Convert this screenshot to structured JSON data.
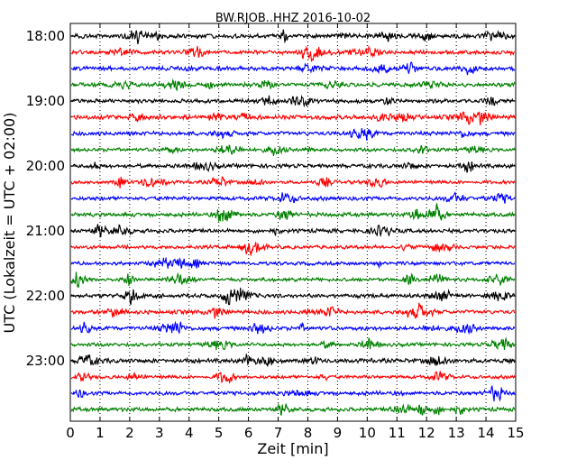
{
  "chart_data": {
    "type": "line",
    "title": "BW.RJOB..HHZ 2016-10-02",
    "xlabel": "Zeit  [min]",
    "ylabel": "UTC (Lokalzeit = UTC + 02:00)",
    "xlim": [
      0,
      15
    ],
    "x_ticks": [
      0,
      1,
      2,
      3,
      4,
      5,
      6,
      7,
      8,
      9,
      10,
      11,
      12,
      13,
      14,
      15
    ],
    "x_tick_labels": [
      "0",
      "1",
      "2",
      "3",
      "4",
      "5",
      "6",
      "7",
      "8",
      "9",
      "10",
      "11",
      "12",
      "13",
      "14",
      "15"
    ],
    "y_tick_labels": [
      "18:00",
      "19:00",
      "20:00",
      "21:00",
      "22:00",
      "23:00"
    ],
    "y_tick_rows": [
      0,
      4,
      8,
      12,
      16,
      20
    ],
    "grid": "vertical-dotted",
    "row_interval_min": 15,
    "trace_colors": [
      "#000000",
      "#ff0000",
      "#0000ff",
      "#008000"
    ],
    "traces": [
      {
        "start": "18:00",
        "amp": 1.0
      },
      {
        "start": "18:15",
        "amp": 0.9
      },
      {
        "start": "18:30",
        "amp": 1.0
      },
      {
        "start": "18:45",
        "amp": 0.9
      },
      {
        "start": "19:00",
        "amp": 0.9
      },
      {
        "start": "19:15",
        "amp": 1.0
      },
      {
        "start": "19:30",
        "amp": 0.9
      },
      {
        "start": "19:45",
        "amp": 0.8
      },
      {
        "start": "20:00",
        "amp": 0.9
      },
      {
        "start": "20:15",
        "amp": 0.8
      },
      {
        "start": "20:30",
        "amp": 0.9
      },
      {
        "start": "20:45",
        "amp": 0.9
      },
      {
        "start": "21:00",
        "amp": 0.9
      },
      {
        "start": "21:15",
        "amp": 0.8
      },
      {
        "start": "21:30",
        "amp": 0.8
      },
      {
        "start": "21:45",
        "amp": 0.8
      },
      {
        "start": "22:00",
        "amp": 0.9
      },
      {
        "start": "22:15",
        "amp": 0.9
      },
      {
        "start": "22:30",
        "amp": 0.9
      },
      {
        "start": "22:45",
        "amp": 0.8
      },
      {
        "start": "23:00",
        "amp": 1.0
      },
      {
        "start": "23:15",
        "amp": 0.8
      },
      {
        "start": "23:30",
        "amp": 0.9
      },
      {
        "start": "23:45",
        "amp": 0.9
      }
    ]
  }
}
